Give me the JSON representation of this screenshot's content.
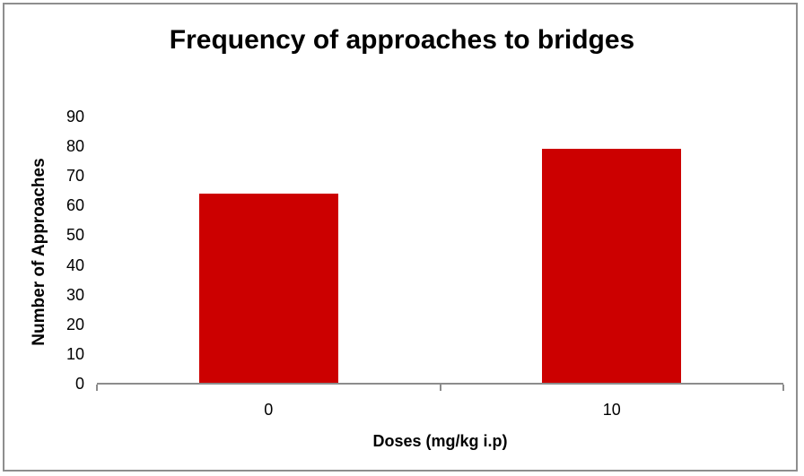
{
  "chart_data": {
    "type": "bar",
    "title": "Frequency of approaches to bridges",
    "xlabel": "Doses (mg/kg i.p)",
    "ylabel": "Number of Approaches",
    "categories": [
      "0",
      "10"
    ],
    "values": [
      64,
      79
    ],
    "yticks": [
      0,
      10,
      20,
      30,
      40,
      50,
      60,
      70,
      80,
      90
    ],
    "ylim": [
      0,
      90
    ],
    "grid": false,
    "legend": false
  },
  "colors": {
    "bar": "#cc0000",
    "axis": "#8c8c8c",
    "frame": "#8e8e8e",
    "text": "#000000",
    "background": "#ffffff"
  }
}
